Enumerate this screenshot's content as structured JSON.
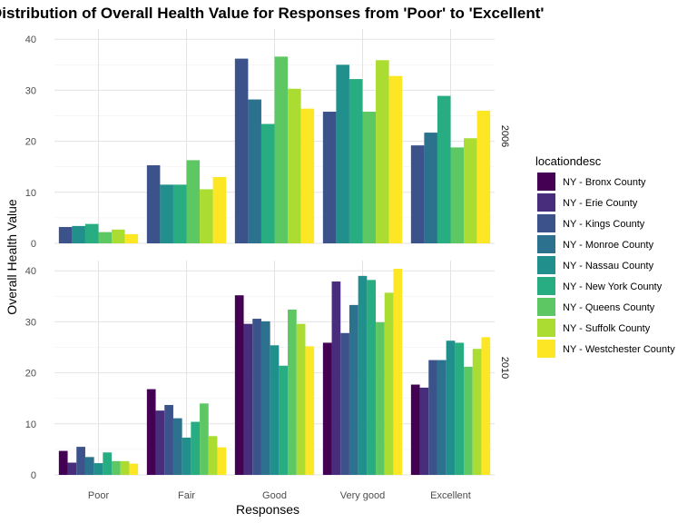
{
  "chart_data": {
    "type": "bar",
    "title": "Distribution of Overall Health Value for Responses from 'Poor' to 'Excellent'",
    "xlabel": "Responses",
    "ylabel": "Overall Health Value",
    "ylim": [
      0,
      42
    ],
    "yticks": [
      0,
      10,
      20,
      30,
      40
    ],
    "categories": [
      "Poor",
      "Fair",
      "Good",
      "Very good",
      "Excellent"
    ],
    "legend": {
      "title": "locationdesc",
      "placement": "right",
      "entries": [
        {
          "name": "NY - Bronx County",
          "color": "#440154"
        },
        {
          "name": "NY - Erie County",
          "color": "#472D7B"
        },
        {
          "name": "NY - Kings County",
          "color": "#3B528B"
        },
        {
          "name": "NY - Monroe County",
          "color": "#2C728E"
        },
        {
          "name": "NY - Nassau County",
          "color": "#21908C"
        },
        {
          "name": "NY - New York County",
          "color": "#27AD81"
        },
        {
          "name": "NY - Queens County",
          "color": "#5DC863"
        },
        {
          "name": "NY - Suffolk County",
          "color": "#AADC32"
        },
        {
          "name": "NY - Westchester County",
          "color": "#FDE725"
        }
      ]
    },
    "grid": true,
    "panels": [
      {
        "label": "2006",
        "bars": [
          {
            "category": "Poor",
            "values": [
              {
                "series": "NY - Kings County",
                "value": 3.2
              },
              {
                "series": "NY - Nassau County",
                "value": 3.4
              },
              {
                "series": "NY - New York County",
                "value": 3.8
              },
              {
                "series": "NY - Queens County",
                "value": 2.2
              },
              {
                "series": "NY - Suffolk County",
                "value": 2.7
              },
              {
                "series": "NY - Westchester County",
                "value": 1.8
              }
            ]
          },
          {
            "category": "Fair",
            "values": [
              {
                "series": "NY - Kings County",
                "value": 15.3
              },
              {
                "series": "NY - Nassau County",
                "value": 11.5
              },
              {
                "series": "NY - New York County",
                "value": 11.5
              },
              {
                "series": "NY - Queens County",
                "value": 16.3
              },
              {
                "series": "NY - Suffolk County",
                "value": 10.6
              },
              {
                "series": "NY - Westchester County",
                "value": 13.0
              }
            ]
          },
          {
            "category": "Good",
            "values": [
              {
                "series": "NY - Kings County",
                "value": 36.2
              },
              {
                "series": "NY - Monroe County",
                "value": 28.2
              },
              {
                "series": "NY - New York County",
                "value": 23.4
              },
              {
                "series": "NY - Queens County",
                "value": 36.6
              },
              {
                "series": "NY - Suffolk County",
                "value": 30.3
              },
              {
                "series": "NY - Westchester County",
                "value": 26.4
              }
            ]
          },
          {
            "category": "Very good",
            "values": [
              {
                "series": "NY - Kings County",
                "value": 25.8
              },
              {
                "series": "NY - Nassau County",
                "value": 35.0
              },
              {
                "series": "NY - New York County",
                "value": 32.2
              },
              {
                "series": "NY - Queens County",
                "value": 25.8
              },
              {
                "series": "NY - Suffolk County",
                "value": 35.9
              },
              {
                "series": "NY - Westchester County",
                "value": 32.8
              }
            ]
          },
          {
            "category": "Excellent",
            "values": [
              {
                "series": "NY - Kings County",
                "value": 19.2
              },
              {
                "series": "NY - Monroe County",
                "value": 21.7
              },
              {
                "series": "NY - New York County",
                "value": 28.9
              },
              {
                "series": "NY - Queens County",
                "value": 18.8
              },
              {
                "series": "NY - Suffolk County",
                "value": 20.6
              },
              {
                "series": "NY - Westchester County",
                "value": 26.0
              }
            ]
          }
        ]
      },
      {
        "label": "2010",
        "bars": [
          {
            "category": "Poor",
            "values": [
              {
                "series": "NY - Bronx County",
                "value": 4.7
              },
              {
                "series": "NY - Erie County",
                "value": 2.4
              },
              {
                "series": "NY - Kings County",
                "value": 5.5
              },
              {
                "series": "NY - Monroe County",
                "value": 3.5
              },
              {
                "series": "NY - Nassau County",
                "value": 2.3
              },
              {
                "series": "NY - New York County",
                "value": 4.4
              },
              {
                "series": "NY - Queens County",
                "value": 2.7
              },
              {
                "series": "NY - Suffolk County",
                "value": 2.7
              },
              {
                "series": "NY - Westchester County",
                "value": 2.2
              }
            ]
          },
          {
            "category": "Fair",
            "values": [
              {
                "series": "NY - Bronx County",
                "value": 16.8
              },
              {
                "series": "NY - Erie County",
                "value": 12.6
              },
              {
                "series": "NY - Kings County",
                "value": 13.7
              },
              {
                "series": "NY - Monroe County",
                "value": 11.1
              },
              {
                "series": "NY - Nassau County",
                "value": 7.3
              },
              {
                "series": "NY - New York County",
                "value": 10.4
              },
              {
                "series": "NY - Queens County",
                "value": 14.0
              },
              {
                "series": "NY - Suffolk County",
                "value": 7.6
              },
              {
                "series": "NY - Westchester County",
                "value": 5.4
              }
            ]
          },
          {
            "category": "Good",
            "values": [
              {
                "series": "NY - Bronx County",
                "value": 35.2
              },
              {
                "series": "NY - Erie County",
                "value": 29.6
              },
              {
                "series": "NY - Kings County",
                "value": 30.6
              },
              {
                "series": "NY - Monroe County",
                "value": 30.1
              },
              {
                "series": "NY - Nassau County",
                "value": 25.4
              },
              {
                "series": "NY - New York County",
                "value": 21.4
              },
              {
                "series": "NY - Queens County",
                "value": 32.4
              },
              {
                "series": "NY - Suffolk County",
                "value": 29.6
              },
              {
                "series": "NY - Westchester County",
                "value": 25.2
              }
            ]
          },
          {
            "category": "Very good",
            "values": [
              {
                "series": "NY - Bronx County",
                "value": 25.9
              },
              {
                "series": "NY - Erie County",
                "value": 37.9
              },
              {
                "series": "NY - Kings County",
                "value": 27.8
              },
              {
                "series": "NY - Monroe County",
                "value": 33.3
              },
              {
                "series": "NY - Nassau County",
                "value": 39.0
              },
              {
                "series": "NY - New York County",
                "value": 38.2
              },
              {
                "series": "NY - Queens County",
                "value": 29.9
              },
              {
                "series": "NY - Suffolk County",
                "value": 35.7
              },
              {
                "series": "NY - Westchester County",
                "value": 40.4
              }
            ]
          },
          {
            "category": "Excellent",
            "values": [
              {
                "series": "NY - Bronx County",
                "value": 17.7
              },
              {
                "series": "NY - Erie County",
                "value": 17.1
              },
              {
                "series": "NY - Kings County",
                "value": 22.5
              },
              {
                "series": "NY - Monroe County",
                "value": 22.5
              },
              {
                "series": "NY - Nassau County",
                "value": 26.3
              },
              {
                "series": "NY - New York County",
                "value": 25.9
              },
              {
                "series": "NY - Queens County",
                "value": 21.2
              },
              {
                "series": "NY - Suffolk County",
                "value": 24.7
              },
              {
                "series": "NY - Westchester County",
                "value": 27.0
              }
            ]
          }
        ]
      }
    ]
  }
}
